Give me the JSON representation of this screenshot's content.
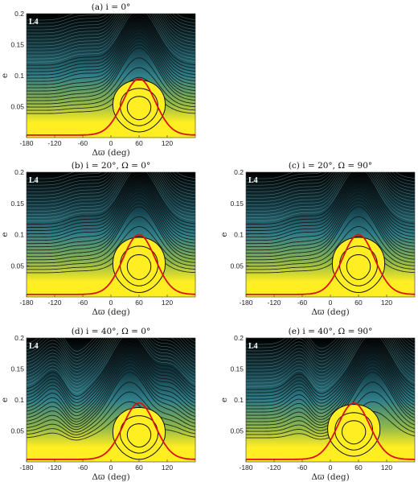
{
  "colors": {
    "background": "#000000",
    "mid": "#2f7f8a",
    "high_energy": "#ffee22",
    "contour": "#111111",
    "separatrix": "#dd1111"
  },
  "chart_data": [
    {
      "type": "heatmap",
      "title": "(a) i = 0°",
      "point_label": "L4",
      "xlabel": "Δϖ (deg)",
      "ylabel": "e",
      "xlim": [
        -180,
        180
      ],
      "ylim": [
        0,
        0.2
      ],
      "xticks": [
        "-180",
        "-120",
        "-60",
        "0",
        "60",
        "120"
      ],
      "yticks": [
        "0.05",
        "0.1",
        "0.15",
        "0.2"
      ],
      "island_center": [
        60,
        0.045
      ],
      "separatrix_peak_e": 0.095,
      "upper_contour_peak_x": 60,
      "lower_peak_x": [
        -60
      ]
    },
    {
      "type": "heatmap",
      "title": "(b) i = 20°, Ω = 0°",
      "point_label": "L4",
      "xlabel": "Δϖ (deg)",
      "ylabel": "e",
      "xlim": [
        -180,
        180
      ],
      "ylim": [
        0,
        0.2
      ],
      "xticks": [
        "-180",
        "-120",
        "-60",
        "0",
        "60",
        "120"
      ],
      "yticks": [
        "0.05",
        "0.1",
        "0.15",
        "0.2"
      ],
      "island_center": [
        60,
        0.045
      ],
      "separatrix_peak_e": 0.1,
      "upper_contour_peak_x": 60,
      "lower_peak_x": [
        -60
      ]
    },
    {
      "type": "heatmap",
      "title": "(c) i = 20°, Ω = 90°",
      "point_label": "L4",
      "xlabel": "Δϖ (deg)",
      "ylabel": "e",
      "xlim": [
        -180,
        180
      ],
      "ylim": [
        0,
        0.2
      ],
      "xticks": [
        "-180",
        "-120",
        "-60",
        "0",
        "60",
        "120"
      ],
      "yticks": [
        "0.05",
        "0.1",
        "0.15",
        "0.2"
      ],
      "island_center": [
        60,
        0.045
      ],
      "separatrix_peak_e": 0.1,
      "upper_contour_peak_x": 60,
      "lower_peak_x": [
        -60
      ]
    },
    {
      "type": "heatmap",
      "title": "(d) i = 40°, Ω = 0°",
      "point_label": "L4",
      "xlabel": "Δϖ (deg)",
      "ylabel": "e",
      "xlim": [
        -180,
        180
      ],
      "ylim": [
        0,
        0.2
      ],
      "xticks": [
        "-180",
        "-120",
        "-60",
        "0",
        "60",
        "120"
      ],
      "yticks": [
        "0.05",
        "0.1",
        "0.15",
        "0.2"
      ],
      "island_center": [
        60,
        0.04
      ],
      "separatrix_peak_e": 0.095,
      "upper_contour_peak_x": 40,
      "lower_peak_x": [
        -120,
        130
      ]
    },
    {
      "type": "heatmap",
      "title": "(e) i = 40°, Ω = 90°",
      "point_label": "L4",
      "xlabel": "Δϖ (deg)",
      "ylabel": "e",
      "xlim": [
        -180,
        180
      ],
      "ylim": [
        0,
        0.2
      ],
      "xticks": [
        "-180",
        "-120",
        "-60",
        "0",
        "60",
        "120"
      ],
      "yticks": [
        "0.05",
        "0.1",
        "0.15",
        "0.2"
      ],
      "island_center": [
        50,
        0.045
      ],
      "separatrix_peak_e": 0.095,
      "upper_contour_peak_x": 90,
      "lower_peak_x": [
        -60
      ]
    }
  ]
}
